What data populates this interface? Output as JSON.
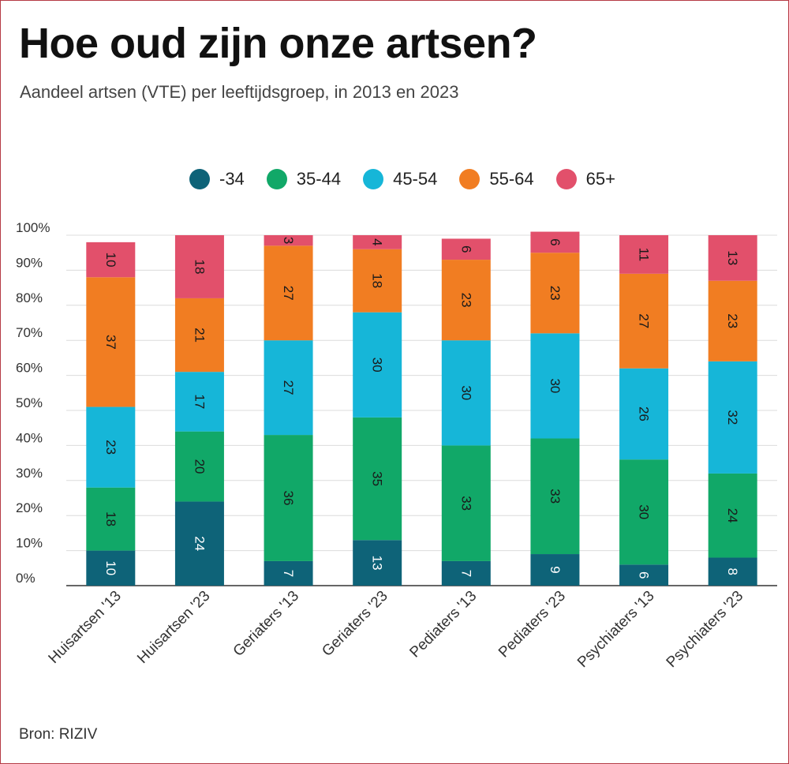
{
  "header": {
    "title": "Hoe oud zijn onze artsen?",
    "subtitle": "Aandeel artsen (VTE) per leeftijdsgroep, in 2013 en 2023"
  },
  "source": "Bron: RIZIV",
  "chart_data": {
    "type": "bar",
    "stacked": true,
    "categories": [
      "Huisartsen '13",
      "Huisartsen '23",
      "Geriaters '13",
      "Geriaters '23",
      "Pediaters '13",
      "Pediaters '23",
      "Psychiaters '13",
      "Psychiaters '23"
    ],
    "series": [
      {
        "name": "-34",
        "color": "#0e6378",
        "values": [
          10,
          24,
          7,
          13,
          7,
          9,
          6,
          8
        ]
      },
      {
        "name": "35-44",
        "color": "#11a868",
        "values": [
          18,
          20,
          36,
          35,
          33,
          33,
          30,
          24
        ]
      },
      {
        "name": "45-54",
        "color": "#16b6d8",
        "values": [
          23,
          17,
          27,
          30,
          30,
          30,
          26,
          32
        ]
      },
      {
        "name": "55-64",
        "color": "#f17d22",
        "values": [
          37,
          21,
          27,
          18,
          23,
          23,
          27,
          23
        ]
      },
      {
        "name": "65+",
        "color": "#e2506b",
        "values": [
          10,
          18,
          3,
          4,
          6,
          6,
          11,
          13
        ]
      }
    ],
    "y_ticks": [
      "0%",
      "10%",
      "20%",
      "30%",
      "40%",
      "50%",
      "60%",
      "70%",
      "80%",
      "90%",
      "100%"
    ],
    "ylim": [
      0,
      100
    ],
    "grid": true,
    "legend_position": "top"
  }
}
